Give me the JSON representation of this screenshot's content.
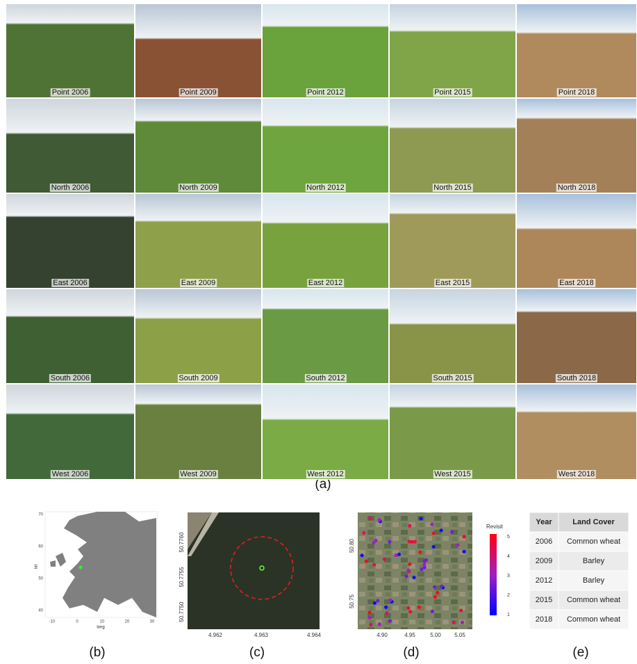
{
  "figure_a": {
    "label": "(a)",
    "captions": [
      [
        "Point 2006",
        "Point 2009",
        "Point 2012",
        "Point 2015",
        "Point 2018"
      ],
      [
        "North 2006",
        "North 2009",
        "North 2012",
        "North 2015",
        "North 2018"
      ],
      [
        "East 2006",
        "East 2009",
        "East 2012",
        "East 2015",
        "East 2018"
      ],
      [
        "South 2006",
        "South 2009",
        "South 2012",
        "South 2015",
        "South 2018"
      ],
      [
        "West 2006",
        "West 2009",
        "West 2012",
        "West 2015",
        "West 2018"
      ]
    ]
  },
  "panel_b": {
    "label": "(b)",
    "x_label": "long",
    "y_label": "lat",
    "xticks": [
      "-10",
      "0",
      "10",
      "20",
      "30"
    ],
    "yticks": [
      "70",
      "60",
      "50",
      "40"
    ]
  },
  "panel_c": {
    "label": "(c)",
    "xticks": [
      "4.962",
      "4.963",
      "4.964"
    ],
    "yticks": [
      "50.7760",
      "50.7755",
      "50.7750"
    ]
  },
  "panel_d": {
    "label": "(d)",
    "xticks": [
      "4.90",
      "4.95",
      "5.00",
      "5.05"
    ],
    "yticks": [
      "50.80",
      "50.75"
    ],
    "colorbar_title": "Revisit",
    "colorbar_ticks": [
      "5",
      "4",
      "3",
      "2",
      "1"
    ]
  },
  "panel_e": {
    "label": "(e)",
    "header": [
      "Year",
      "Land Cover"
    ],
    "rows": [
      [
        "2006",
        "Common wheat"
      ],
      [
        "2009",
        "Barley"
      ],
      [
        "2012",
        "Barley"
      ],
      [
        "2015",
        "Common wheat"
      ],
      [
        "2018",
        "Common wheat"
      ]
    ]
  }
}
